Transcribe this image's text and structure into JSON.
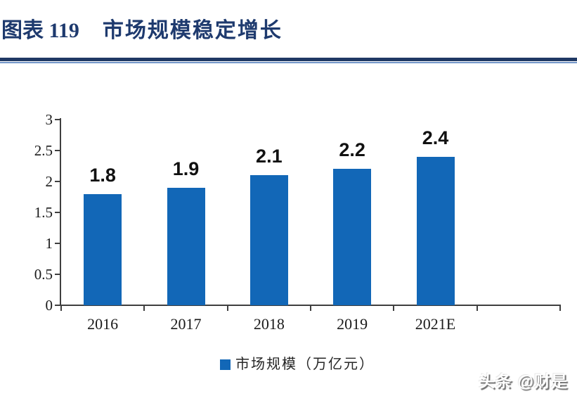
{
  "header": {
    "title_prefix": "图表 119",
    "title_text": "市场规模稳定增长"
  },
  "chart_data": {
    "type": "bar",
    "title": "市场规模稳定增长",
    "categories": [
      "2016",
      "2017",
      "2018",
      "2019",
      "2021E"
    ],
    "values": [
      1.8,
      1.9,
      2.1,
      2.2,
      2.4
    ],
    "value_labels": [
      "1.8",
      "1.9",
      "2.1",
      "2.2",
      "2.4"
    ],
    "xlabel": "",
    "ylabel": "",
    "ylim": [
      0,
      3
    ],
    "ytick_values": [
      0,
      0.5,
      1,
      1.5,
      2,
      2.5,
      3
    ],
    "ytick_labels": [
      "0",
      "0.5",
      "1",
      "1.5",
      "2",
      "2.5",
      "3"
    ],
    "grid": false,
    "legend_position": "bottom",
    "legend": [
      {
        "label": "市场规模（万亿元）",
        "color": "#1267B7"
      }
    ],
    "bar_color": "#1267B7"
  },
  "watermark": {
    "text": "头条 @财是"
  },
  "colors": {
    "title_navy": "#1E3A6E",
    "divider_navy": "#1F3864",
    "divider_light": "#7396C9",
    "bar_blue": "#1267B7",
    "axis_gray": "#3F3F3F"
  }
}
